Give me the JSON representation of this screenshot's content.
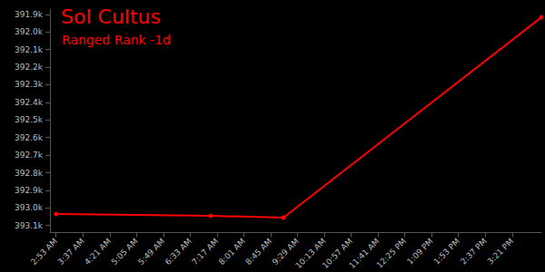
{
  "chart_data": {
    "type": "line",
    "title": "Sol Cultus",
    "subtitle": "Ranged Rank -1d",
    "x": [
      173,
      427,
      546,
      969
    ],
    "series": [
      {
        "name": "Ranged Rank",
        "color": "#ff0000",
        "marker": "circle",
        "values": [
          393035,
          393045,
          393055,
          391917
        ]
      }
    ],
    "xlim": [
      163,
      969
    ],
    "xticks": [
      {
        "value": 173,
        "label": "2:53 AM"
      },
      {
        "value": 217,
        "label": "3:37 AM"
      },
      {
        "value": 261,
        "label": "4:21 AM"
      },
      {
        "value": 305,
        "label": "5:05 AM"
      },
      {
        "value": 349,
        "label": "5:49 AM"
      },
      {
        "value": 393,
        "label": "6:33 AM"
      },
      {
        "value": 437,
        "label": "7:17 AM"
      },
      {
        "value": 481,
        "label": "8:01 AM"
      },
      {
        "value": 525,
        "label": "8:45 AM"
      },
      {
        "value": 569,
        "label": "9:29 AM"
      },
      {
        "value": 613,
        "label": "10:13 AM"
      },
      {
        "value": 657,
        "label": "10:57 AM"
      },
      {
        "value": 701,
        "label": "11:41 AM"
      },
      {
        "value": 745,
        "label": "12:25 PM"
      },
      {
        "value": 789,
        "label": "1:09 PM"
      },
      {
        "value": 833,
        "label": "1:53 PM"
      },
      {
        "value": 877,
        "label": "2:37 PM"
      },
      {
        "value": 921,
        "label": "3:21 PM"
      }
    ],
    "ylim": [
      393140,
      391870
    ],
    "yticks": [
      {
        "value": 391900,
        "label": "391.9k"
      },
      {
        "value": 392000,
        "label": "392.0k"
      },
      {
        "value": 392100,
        "label": "392.1k"
      },
      {
        "value": 392200,
        "label": "392.2k"
      },
      {
        "value": 392300,
        "label": "392.3k"
      },
      {
        "value": 392400,
        "label": "392.4k"
      },
      {
        "value": 392500,
        "label": "392.5k"
      },
      {
        "value": 392600,
        "label": "392.6k"
      },
      {
        "value": 392700,
        "label": "392.7k"
      },
      {
        "value": 392800,
        "label": "392.8k"
      },
      {
        "value": 392900,
        "label": "392.9k"
      },
      {
        "value": 393000,
        "label": "393.0k"
      },
      {
        "value": 393100,
        "label": "393.1k"
      }
    ],
    "grid": false
  }
}
